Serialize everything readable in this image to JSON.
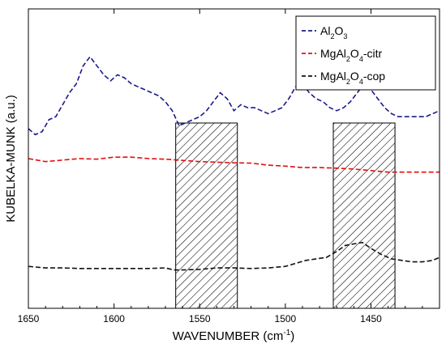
{
  "chart_data": {
    "type": "line",
    "xlabel_main": "WAVENUMBER (cm",
    "xlabel_sup": "-1",
    "xlabel_end": ")",
    "ylabel": "KUBELKA-MUNK (a.u.)",
    "xlim": [
      1650,
      1410
    ],
    "x_reversed": true,
    "x_ticks": [
      1650,
      1600,
      1550,
      1500,
      1450
    ],
    "y_ticks_shown": false,
    "grid": false,
    "legend_position": "top-right",
    "shaded_bands": [
      [
        1564,
        1528
      ],
      [
        1472,
        1436
      ]
    ],
    "shaded_band_style": "hatched",
    "series": [
      {
        "name": "Al2O3",
        "name_parts": [
          [
            "Al",
            ""
          ],
          [
            "2",
            "sub"
          ],
          [
            "O",
            ""
          ],
          [
            "3",
            "sub"
          ]
        ],
        "color": "#1a1a8c",
        "dash": "dashed",
        "points": [
          [
            1650,
            0.6
          ],
          [
            1646,
            0.58
          ],
          [
            1642,
            0.59
          ],
          [
            1638,
            0.63
          ],
          [
            1634,
            0.64
          ],
          [
            1630,
            0.68
          ],
          [
            1626,
            0.72
          ],
          [
            1622,
            0.75
          ],
          [
            1618,
            0.81
          ],
          [
            1614,
            0.84
          ],
          [
            1610,
            0.81
          ],
          [
            1606,
            0.78
          ],
          [
            1602,
            0.76
          ],
          [
            1598,
            0.78
          ],
          [
            1594,
            0.77
          ],
          [
            1590,
            0.75
          ],
          [
            1586,
            0.74
          ],
          [
            1582,
            0.73
          ],
          [
            1578,
            0.72
          ],
          [
            1574,
            0.71
          ],
          [
            1570,
            0.69
          ],
          [
            1566,
            0.66
          ],
          [
            1562,
            0.61
          ],
          [
            1558,
            0.62
          ],
          [
            1554,
            0.63
          ],
          [
            1550,
            0.64
          ],
          [
            1546,
            0.66
          ],
          [
            1542,
            0.69
          ],
          [
            1538,
            0.72
          ],
          [
            1534,
            0.7
          ],
          [
            1530,
            0.66
          ],
          [
            1526,
            0.68
          ],
          [
            1522,
            0.67
          ],
          [
            1518,
            0.67
          ],
          [
            1514,
            0.66
          ],
          [
            1510,
            0.65
          ],
          [
            1506,
            0.66
          ],
          [
            1502,
            0.67
          ],
          [
            1498,
            0.7
          ],
          [
            1494,
            0.74
          ],
          [
            1490,
            0.75
          ],
          [
            1486,
            0.72
          ],
          [
            1482,
            0.7
          ],
          [
            1478,
            0.69
          ],
          [
            1474,
            0.67
          ],
          [
            1470,
            0.66
          ],
          [
            1466,
            0.67
          ],
          [
            1462,
            0.69
          ],
          [
            1458,
            0.72
          ],
          [
            1454,
            0.75
          ],
          [
            1450,
            0.73
          ],
          [
            1446,
            0.7
          ],
          [
            1442,
            0.67
          ],
          [
            1438,
            0.65
          ],
          [
            1434,
            0.64
          ],
          [
            1430,
            0.64
          ],
          [
            1426,
            0.64
          ],
          [
            1422,
            0.64
          ],
          [
            1418,
            0.64
          ],
          [
            1414,
            0.65
          ],
          [
            1410,
            0.66
          ]
        ]
      },
      {
        "name": "MgAl2O4-citr",
        "name_parts": [
          [
            "MgAl",
            ""
          ],
          [
            "2",
            "sub"
          ],
          [
            "O",
            ""
          ],
          [
            "4",
            "sub"
          ],
          [
            "-citr",
            ""
          ]
        ],
        "color": "#e01010",
        "dash": "dashed",
        "points": [
          [
            1650,
            0.5
          ],
          [
            1640,
            0.49
          ],
          [
            1630,
            0.495
          ],
          [
            1620,
            0.5
          ],
          [
            1610,
            0.498
          ],
          [
            1600,
            0.505
          ],
          [
            1590,
            0.505
          ],
          [
            1580,
            0.5
          ],
          [
            1570,
            0.498
          ],
          [
            1560,
            0.494
          ],
          [
            1550,
            0.49
          ],
          [
            1540,
            0.488
          ],
          [
            1530,
            0.486
          ],
          [
            1520,
            0.485
          ],
          [
            1510,
            0.478
          ],
          [
            1500,
            0.475
          ],
          [
            1490,
            0.47
          ],
          [
            1480,
            0.47
          ],
          [
            1470,
            0.468
          ],
          [
            1460,
            0.465
          ],
          [
            1450,
            0.46
          ],
          [
            1440,
            0.455
          ],
          [
            1430,
            0.455
          ],
          [
            1420,
            0.455
          ],
          [
            1410,
            0.455
          ]
        ]
      },
      {
        "name": "MgAl2O4-cop",
        "name_parts": [
          [
            "MgAl",
            ""
          ],
          [
            "2",
            "sub"
          ],
          [
            "O",
            ""
          ],
          [
            "4",
            "sub"
          ],
          [
            "-cop",
            ""
          ]
        ],
        "color": "#111111",
        "dash": "dashed",
        "points": [
          [
            1650,
            0.14
          ],
          [
            1640,
            0.135
          ],
          [
            1630,
            0.135
          ],
          [
            1620,
            0.133
          ],
          [
            1610,
            0.133
          ],
          [
            1600,
            0.133
          ],
          [
            1590,
            0.133
          ],
          [
            1580,
            0.133
          ],
          [
            1570,
            0.135
          ],
          [
            1565,
            0.128
          ],
          [
            1560,
            0.128
          ],
          [
            1550,
            0.13
          ],
          [
            1540,
            0.135
          ],
          [
            1530,
            0.135
          ],
          [
            1520,
            0.133
          ],
          [
            1510,
            0.135
          ],
          [
            1500,
            0.14
          ],
          [
            1494,
            0.15
          ],
          [
            1488,
            0.16
          ],
          [
            1482,
            0.165
          ],
          [
            1476,
            0.17
          ],
          [
            1470,
            0.19
          ],
          [
            1465,
            0.21
          ],
          [
            1460,
            0.215
          ],
          [
            1455,
            0.22
          ],
          [
            1450,
            0.2
          ],
          [
            1444,
            0.18
          ],
          [
            1438,
            0.165
          ],
          [
            1432,
            0.16
          ],
          [
            1426,
            0.155
          ],
          [
            1420,
            0.155
          ],
          [
            1414,
            0.16
          ],
          [
            1410,
            0.17
          ]
        ]
      }
    ]
  }
}
